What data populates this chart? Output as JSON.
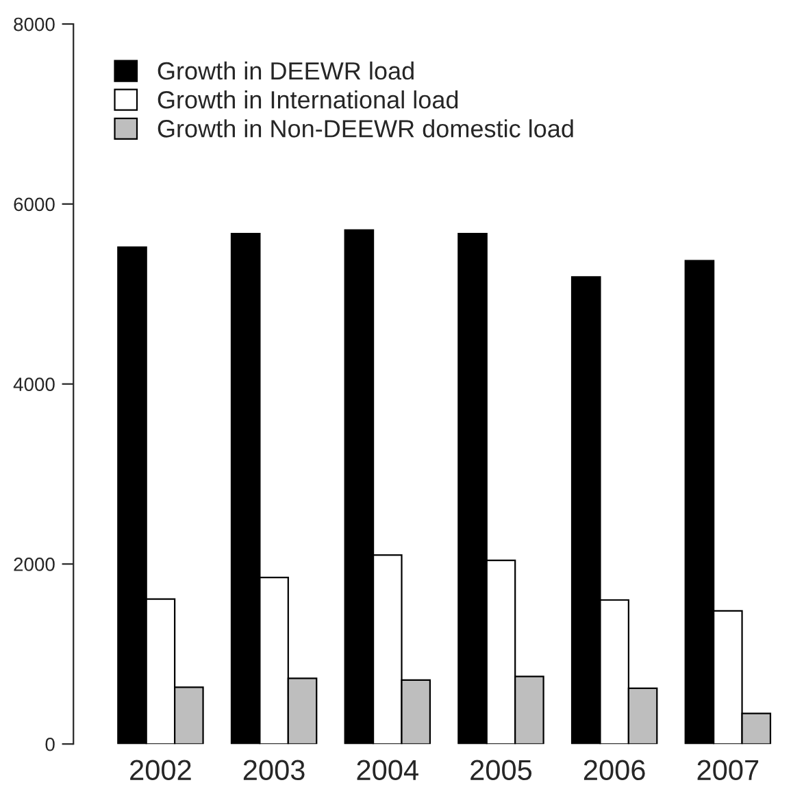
{
  "chart_data": {
    "type": "bar",
    "categories": [
      "2002",
      "2003",
      "2004",
      "2005",
      "2006",
      "2007"
    ],
    "series": [
      {
        "name": "Growth in DEEWR load",
        "color": "#000000",
        "values": [
          5520,
          5670,
          5710,
          5670,
          5190,
          5370
        ]
      },
      {
        "name": "Growth in International load",
        "color": "#ffffff",
        "values": [
          1610,
          1850,
          2100,
          2040,
          1600,
          1480
        ]
      },
      {
        "name": "Growth in Non-DEEWR domestic load",
        "color": "#bebebe",
        "values": [
          630,
          730,
          710,
          750,
          620,
          340
        ]
      }
    ],
    "ylim": [
      0,
      8000
    ],
    "yticks": [
      0,
      2000,
      4000,
      6000,
      8000
    ],
    "grid": false,
    "legend": "top left"
  }
}
